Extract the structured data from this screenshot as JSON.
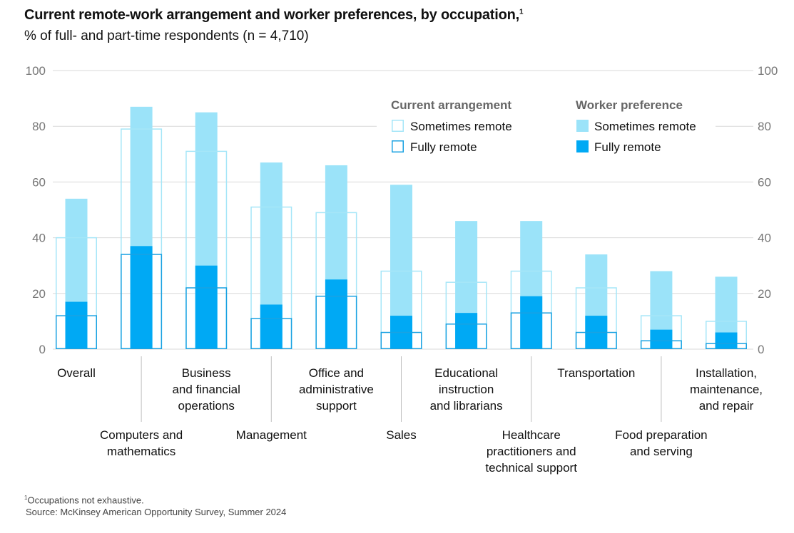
{
  "title": "Current remote-work arrangement and worker preferences, by occupation,",
  "title_footnote_marker": "1",
  "subtitle": "% of full- and part-time respondents (n = 4,710)",
  "footnote_marker": "1",
  "footnote": "Occupations not exhaustive.",
  "source": "Source: McKinsey American Opportunity Survey, Summer 2024",
  "colors": {
    "current_sometimes_outline": "#a6e6f8",
    "current_fully_outline": "#1aa2e2",
    "preference_sometimes_fill": "#9be3f9",
    "preference_fully_fill": "#00a9f4",
    "grid": "#d9d9d9",
    "axis_text": "#777777"
  },
  "chart_data": {
    "type": "bar",
    "title": "Current remote-work arrangement and worker preferences, by occupation,",
    "subtitle": "% of full- and part-time respondents (n = 4,710)",
    "ylim": [
      0,
      100
    ],
    "yticks": [
      0,
      20,
      40,
      60,
      80,
      100
    ],
    "grid": true,
    "legend_placement": "top-right",
    "categories": [
      {
        "lines": [
          "Overall"
        ],
        "row": "top"
      },
      {
        "lines": [
          "Computers and",
          "mathematics"
        ],
        "row": "bottom"
      },
      {
        "lines": [
          "Business",
          "and financial",
          "operations"
        ],
        "row": "top"
      },
      {
        "lines": [
          "Management"
        ],
        "row": "bottom"
      },
      {
        "lines": [
          "Office and",
          "administrative",
          "support"
        ],
        "row": "top"
      },
      {
        "lines": [
          "Sales"
        ],
        "row": "bottom"
      },
      {
        "lines": [
          "Educational",
          "instruction",
          "and librarians"
        ],
        "row": "top"
      },
      {
        "lines": [
          "Healthcare",
          "practitioners and",
          "technical support"
        ],
        "row": "bottom"
      },
      {
        "lines": [
          "Transportation"
        ],
        "row": "top"
      },
      {
        "lines": [
          "Food preparation",
          "and serving"
        ],
        "row": "bottom"
      },
      {
        "lines": [
          "Installation,",
          "maintenance,",
          "and repair"
        ],
        "row": "top"
      }
    ],
    "legend": {
      "current_heading": "Current arrangement",
      "preference_heading": "Worker preference",
      "sometimes_label": "Sometimes remote",
      "fully_label": "Fully remote"
    },
    "series": [
      {
        "group": "Current arrangement",
        "name": "Sometimes remote",
        "values": [
          40,
          79,
          71,
          51,
          49,
          28,
          24,
          28,
          22,
          12,
          10
        ]
      },
      {
        "group": "Current arrangement",
        "name": "Fully remote",
        "values": [
          12,
          34,
          22,
          11,
          19,
          6,
          9,
          13,
          6,
          3,
          2
        ]
      },
      {
        "group": "Worker preference",
        "name": "Sometimes remote",
        "values": [
          54,
          87,
          85,
          67,
          66,
          59,
          46,
          46,
          34,
          28,
          26
        ]
      },
      {
        "group": "Worker preference",
        "name": "Fully remote",
        "values": [
          17,
          37,
          30,
          16,
          25,
          12,
          13,
          19,
          12,
          7,
          6
        ]
      }
    ]
  }
}
